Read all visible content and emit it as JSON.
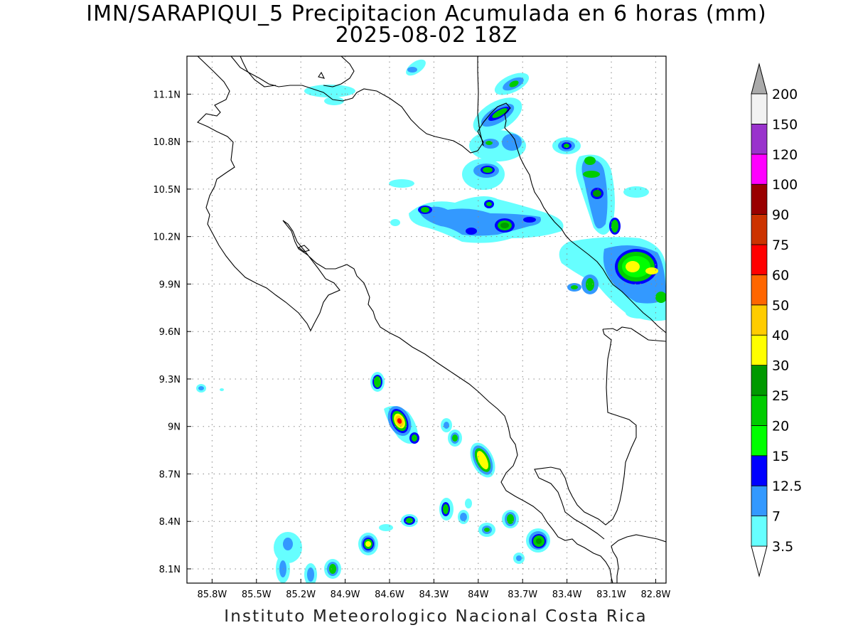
{
  "title": {
    "line1": "IMN/SARAPIQUI_5 Precipitacion Acumulada en 6 horas (mm)",
    "line2": "2025-08-02 18Z"
  },
  "footer": "Instituto Meteorologico Nacional Costa Rica",
  "map": {
    "lon_range": [
      -85.97,
      -82.73
    ],
    "lat_range": [
      8.01,
      11.34
    ],
    "lat_ticks": [
      {
        "value": 11.1,
        "label": "11.1N"
      },
      {
        "value": 10.8,
        "label": "10.8N"
      },
      {
        "value": 10.5,
        "label": "10.5N"
      },
      {
        "value": 10.2,
        "label": "10.2N"
      },
      {
        "value": 9.9,
        "label": "9.9N"
      },
      {
        "value": 9.6,
        "label": "9.6N"
      },
      {
        "value": 9.3,
        "label": "9.3N"
      },
      {
        "value": 9.0,
        "label": "9N"
      },
      {
        "value": 8.7,
        "label": "8.7N"
      },
      {
        "value": 8.4,
        "label": "8.4N"
      },
      {
        "value": 8.1,
        "label": "8.1N"
      }
    ],
    "lon_ticks": [
      {
        "value": -85.8,
        "label": "85.8W"
      },
      {
        "value": -85.5,
        "label": "85.5W"
      },
      {
        "value": -85.2,
        "label": "85.2W"
      },
      {
        "value": -84.9,
        "label": "84.9W"
      },
      {
        "value": -84.6,
        "label": "84.6W"
      },
      {
        "value": -84.3,
        "label": "84.3W"
      },
      {
        "value": -84.0,
        "label": "84W"
      },
      {
        "value": -83.7,
        "label": "83.7W"
      },
      {
        "value": -83.4,
        "label": "83.4W"
      },
      {
        "value": -83.1,
        "label": "83.1W"
      },
      {
        "value": -82.8,
        "label": "82.8W"
      }
    ],
    "grid": "dotted"
  },
  "colorbar": {
    "levels": [
      "3.5",
      "7",
      "12.5",
      "15",
      "20",
      "25",
      "30",
      "40",
      "50",
      "60",
      "75",
      "90",
      "100",
      "120",
      "150",
      "200"
    ],
    "colors": [
      "#ffffff",
      "#66ffff",
      "#3399ff",
      "#0000ff",
      "#00ff00",
      "#00cc00",
      "#009900",
      "#ffff00",
      "#ffcc00",
      "#ff6600",
      "#ff0000",
      "#cc3300",
      "#990000",
      "#ff00ff",
      "#9933cc",
      "#f2f2f2",
      "#aaaaaa"
    ]
  }
}
